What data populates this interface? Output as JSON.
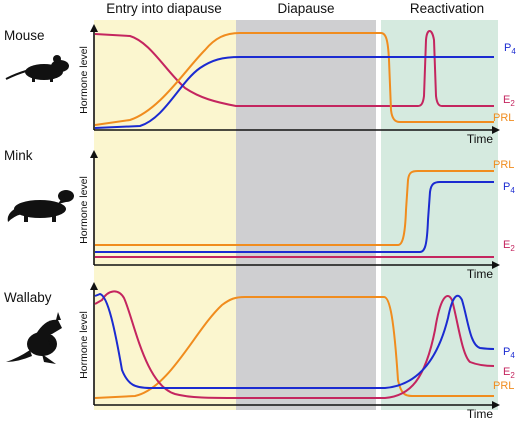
{
  "phases": [
    {
      "label": "Entry into diapause",
      "color": "#fbf6cf"
    },
    {
      "label": "Diapause",
      "color": "#cfcfd1"
    },
    {
      "label": "Reactivation",
      "color": "#d5eadf"
    }
  ],
  "axis": {
    "y_label": "Hormone level",
    "x_label": "Time"
  },
  "colors": {
    "p4": "#1b2bd1",
    "e2": "#c4255f",
    "prl": "#f08c1e"
  },
  "panels": [
    {
      "animal": "Mouse",
      "icon": "mouse-icon",
      "series": [
        {
          "key": "p4",
          "label": "P",
          "sub": "4"
        },
        {
          "key": "e2",
          "label": "E",
          "sub": "2"
        },
        {
          "key": "prl",
          "label": "PRL",
          "sub": ""
        }
      ]
    },
    {
      "animal": "Mink",
      "icon": "mink-icon",
      "series": [
        {
          "key": "prl",
          "label": "PRL",
          "sub": ""
        },
        {
          "key": "p4",
          "label": "P",
          "sub": "4"
        },
        {
          "key": "e2",
          "label": "E",
          "sub": "2"
        }
      ]
    },
    {
      "animal": "Wallaby",
      "icon": "wallaby-icon",
      "series": [
        {
          "key": "p4",
          "label": "P",
          "sub": "4"
        },
        {
          "key": "e2",
          "label": "E",
          "sub": "2"
        },
        {
          "key": "prl",
          "label": "PRL",
          "sub": ""
        }
      ]
    }
  ]
}
